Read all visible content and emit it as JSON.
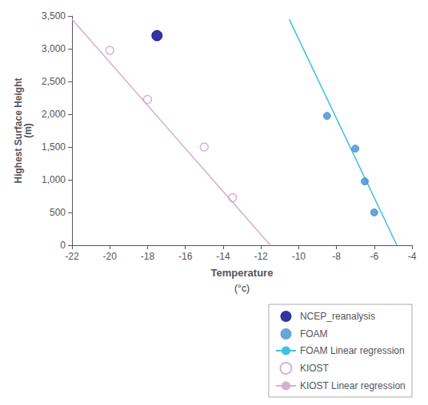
{
  "chart_data": {
    "type": "scatter",
    "xlabel": "Temperature",
    "ylabel": "Highest Surface Height\n(m)",
    "annotations": [
      "(°c)"
    ],
    "xlim": [
      -22,
      -4
    ],
    "ylim": [
      0,
      3500
    ],
    "xticks": [
      -22,
      -20,
      -18,
      -16,
      -14,
      -12,
      -10,
      -8,
      -6,
      -4
    ],
    "yticks": [
      0,
      500,
      1000,
      1500,
      2000,
      2500,
      3000,
      3500
    ],
    "grid": false,
    "legend": "lower right",
    "series": [
      {
        "name": "NCEP_reanalysis",
        "type": "scatter",
        "marker": "circle",
        "color": "#00008B",
        "x": [
          -17.5
        ],
        "values": [
          3200
        ]
      },
      {
        "name": "FOAM",
        "type": "scatter",
        "marker": "circle",
        "color": "#4090D0",
        "x": [
          -8.5,
          -7.0,
          -6.5,
          -6.0
        ],
        "values": [
          1975,
          1475,
          975,
          500
        ]
      },
      {
        "name": "FOAM Linear regression",
        "type": "line",
        "line_style": "solid",
        "color": "#40C0E0",
        "x": [
          -10.5,
          -4.8
        ],
        "values": [
          3450,
          0
        ]
      },
      {
        "name": "KIOST",
        "type": "scatter",
        "marker": "open_circle",
        "color": "#C8A0C8",
        "x": [
          -20.0,
          -18.0,
          -15.0,
          -13.5
        ],
        "values": [
          2975,
          2225,
          1500,
          725
        ]
      },
      {
        "name": "KIOST Linear regression",
        "type": "line",
        "line_style": "solid",
        "color": "#D8B0C8",
        "x": [
          -22.0,
          -11.5
        ],
        "values": [
          3450,
          0
        ]
      }
    ]
  }
}
